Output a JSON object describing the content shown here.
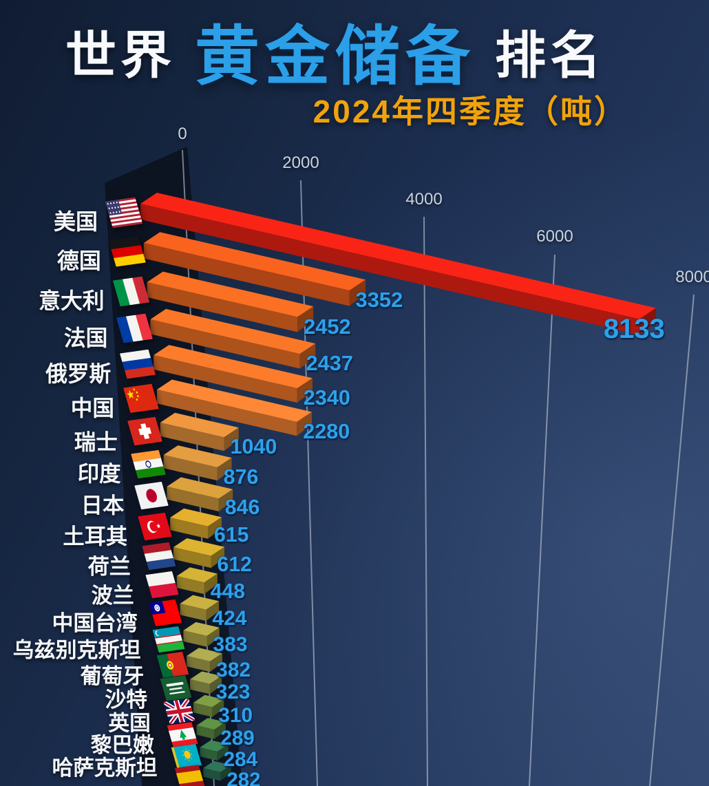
{
  "title": {
    "part1": "世界",
    "part2": "黄金储备",
    "part3": "排名",
    "subtitle": "2024年四季度（吨）"
  },
  "colors": {
    "title_highlight": "#2b9fe8",
    "subtitle_gold": "#f0a30c",
    "value_blue": "#2da1ea",
    "background_navy": "#1c2e50",
    "gridline": "#c9d3e0"
  },
  "chart_data": {
    "type": "bar",
    "orientation": "horizontal",
    "style": "3d-perspective",
    "title": "世界黄金储备排名",
    "subtitle": "2024年四季度（吨）",
    "unit": "吨",
    "x_ticks": [
      "0",
      "2000",
      "4000",
      "6000",
      "8000"
    ],
    "xlim": [
      0,
      8000
    ],
    "grid": true,
    "legend": false,
    "categories": [
      "美国",
      "德国",
      "意大利",
      "法国",
      "俄罗斯",
      "中国",
      "瑞士",
      "印度",
      "日本",
      "土耳其",
      "荷兰",
      "波兰",
      "中国台湾",
      "乌兹别克斯坦",
      "葡萄牙",
      "沙特",
      "英国",
      "黎巴嫩",
      "哈萨克斯坦",
      ""
    ],
    "values": [
      8133,
      3352,
      2452,
      2437,
      2340,
      2280,
      1040,
      876,
      846,
      615,
      612,
      448,
      424,
      383,
      382,
      323,
      310,
      289,
      284,
      282
    ],
    "rows": [
      {
        "name": "美国",
        "value": "8133",
        "flag": "us",
        "color": "#e32114"
      },
      {
        "name": "德国",
        "value": "3352",
        "flag": "de",
        "color": "#e25a1b"
      },
      {
        "name": "意大利",
        "value": "2452",
        "flag": "it",
        "color": "#e4661f"
      },
      {
        "name": "法国",
        "value": "2437",
        "flag": "fr",
        "color": "#e46c24"
      },
      {
        "name": "俄罗斯",
        "value": "2340",
        "flag": "ru",
        "color": "#e57127"
      },
      {
        "name": "中国",
        "value": "2280",
        "flag": "cn",
        "color": "#e77c30"
      },
      {
        "name": "瑞士",
        "value": "1040",
        "flag": "ch",
        "color": "#d98a3a"
      },
      {
        "name": "印度",
        "value": "876",
        "flag": "in",
        "color": "#d08f3b"
      },
      {
        "name": "日本",
        "value": "846",
        "flag": "jp",
        "color": "#c89338"
      },
      {
        "name": "土耳其",
        "value": "615",
        "flag": "tr",
        "color": "#d0a02a"
      },
      {
        "name": "荷兰",
        "value": "612",
        "flag": "nl",
        "color": "#caa32c"
      },
      {
        "name": "波兰",
        "value": "448",
        "flag": "pl",
        "color": "#c1a331"
      },
      {
        "name": "中国台湾",
        "value": "424",
        "flag": "tw",
        "color": "#b8a23c"
      },
      {
        "name": "乌兹别克斯坦",
        "value": "383",
        "flag": "uz",
        "color": "#ada245"
      },
      {
        "name": "葡萄牙",
        "value": "382",
        "flag": "pt",
        "color": "#a19d49"
      },
      {
        "name": "沙特",
        "value": "323",
        "flag": "sa",
        "color": "#92984b"
      },
      {
        "name": "英国",
        "value": "310",
        "flag": "gb",
        "color": "#75913f"
      },
      {
        "name": "黎巴嫩",
        "value": "289",
        "flag": "lb",
        "color": "#57873f"
      },
      {
        "name": "哈萨克斯坦",
        "value": "284",
        "flag": "kz",
        "color": "#3a7a4b"
      },
      {
        "name": "",
        "value": "282",
        "flag": "es",
        "color": "#2c6a52"
      }
    ]
  }
}
